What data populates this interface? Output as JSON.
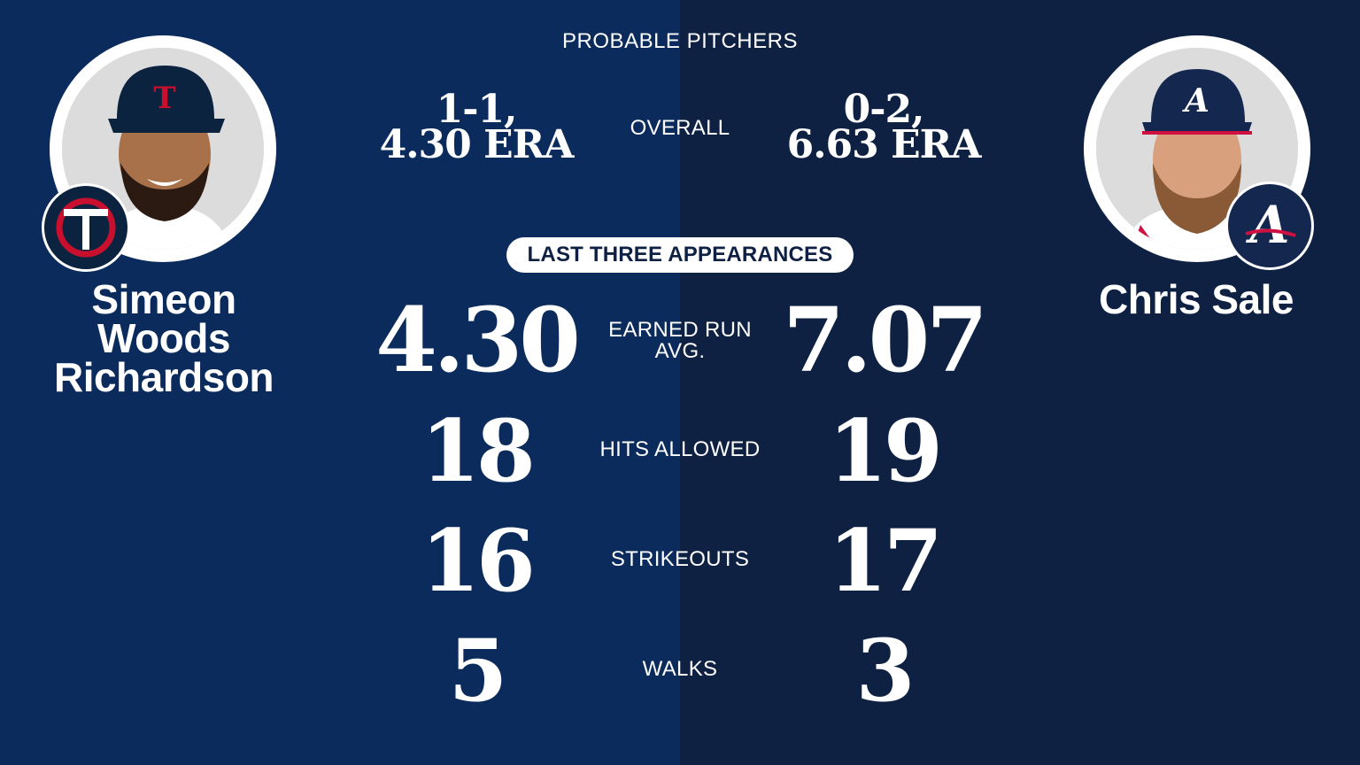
{
  "header": {
    "title": "PROBABLE PITCHERS"
  },
  "colors": {
    "left_bg": "#0a2b5c",
    "right_bg": "#0f2143",
    "twins_red": "#c8102e",
    "braves_red": "#ce1141"
  },
  "pitchers": {
    "left": {
      "name_lines": [
        "Simeon",
        "Woods",
        "Richardson"
      ],
      "team_logo": "twins-logo-icon",
      "overall_line1": "1-1,",
      "overall_line2": "4.30 ERA"
    },
    "right": {
      "name_lines": [
        "Chris Sale"
      ],
      "team_logo": "braves-logo-icon",
      "overall_line1": "0-2,",
      "overall_line2": "6.63 ERA"
    }
  },
  "labels": {
    "overall": "OVERALL",
    "section": "LAST THREE APPEARANCES",
    "era_line1": "EARNED RUN",
    "era_line2": "AVG.",
    "hits": "HITS ALLOWED",
    "strikeouts": "STRIKEOUTS",
    "walks": "WALKS"
  },
  "stats": {
    "left": {
      "era": "4.30",
      "hits": "18",
      "strikeouts": "16",
      "walks": "5"
    },
    "right": {
      "era": "7.07",
      "hits": "19",
      "strikeouts": "17",
      "walks": "3"
    }
  }
}
